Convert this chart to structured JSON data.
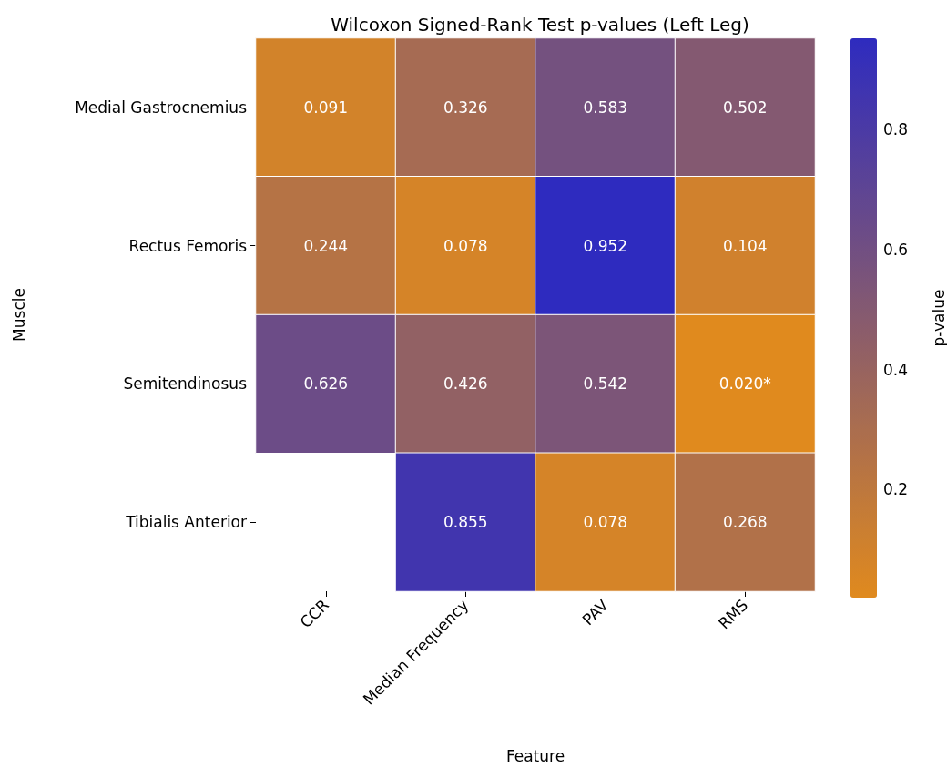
{
  "chart_data": {
    "type": "heatmap",
    "title": "Wilcoxon Signed-Rank Test p-values (Left Leg)",
    "xlabel": "Feature",
    "ylabel": "Muscle",
    "clabel": "p-value",
    "categories": [
      "CCR",
      "Median Frequency",
      "PAV",
      "RMS"
    ],
    "y_categories": [
      "Medial Gastrocnemius",
      "Rectus Femoris",
      "Semitendinosus",
      "Tibialis Anterior"
    ],
    "cells": [
      [
        0.091,
        0.326,
        0.583,
        0.502
      ],
      [
        0.244,
        0.078,
        0.952,
        0.104
      ],
      [
        0.626,
        0.426,
        0.542,
        0.02
      ],
      [
        null,
        0.855,
        0.078,
        0.268
      ]
    ],
    "cell_labels": [
      [
        "0.091",
        "0.326",
        "0.583",
        "0.502"
      ],
      [
        "0.244",
        "0.078",
        "0.952",
        "0.104"
      ],
      [
        "0.626",
        "0.426",
        "0.542",
        "0.020*"
      ],
      [
        null,
        "0.855",
        "0.078",
        "0.268"
      ]
    ],
    "clim": [
      0.02,
      0.952
    ],
    "cticks": [
      0.2,
      0.4,
      0.6,
      0.8
    ]
  }
}
